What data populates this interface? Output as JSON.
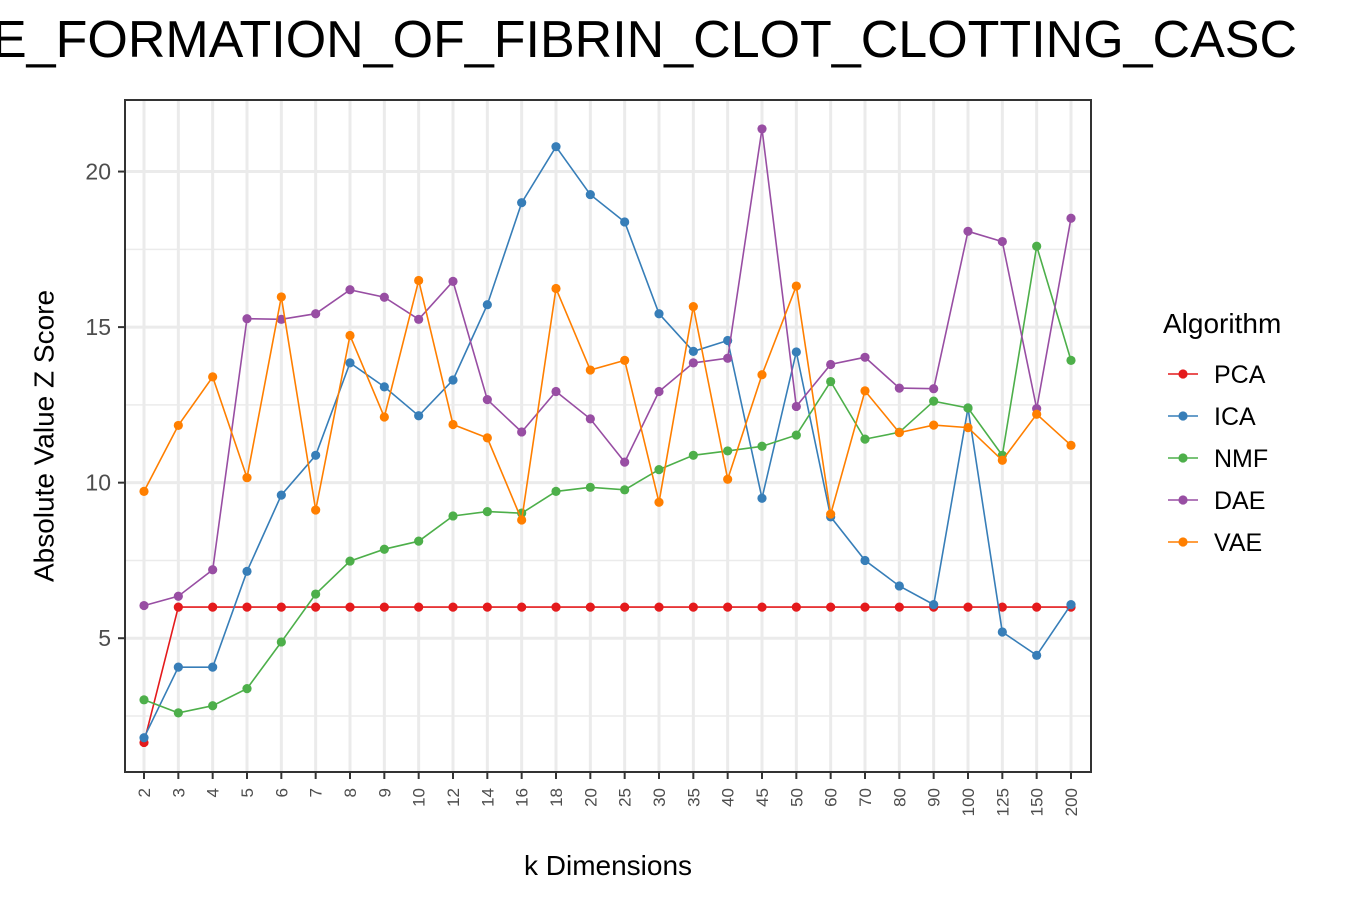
{
  "chart_data": {
    "type": "line",
    "title": "E_FORMATION_OF_FIBRIN_CLOT_CLOTTING_CASC",
    "xlabel": "k Dimensions",
    "ylabel": "Absolute Value Z Score",
    "categories": [
      "2",
      "3",
      "4",
      "5",
      "6",
      "7",
      "8",
      "9",
      "10",
      "12",
      "14",
      "16",
      "18",
      "20",
      "25",
      "30",
      "35",
      "40",
      "45",
      "50",
      "60",
      "70",
      "80",
      "90",
      "100",
      "125",
      "150",
      "200"
    ],
    "ylim": [
      0.7,
      22.3
    ],
    "yticks": [
      5,
      10,
      15,
      20
    ],
    "grid": true,
    "legend": {
      "title": "Algorithm",
      "position": "right"
    },
    "series": [
      {
        "name": "PCA",
        "color": "#e41a1c",
        "values": [
          1.65,
          6,
          6,
          6,
          6,
          6,
          6,
          6,
          6,
          6,
          6,
          6,
          6,
          6,
          6,
          6,
          6,
          6,
          6,
          6,
          6,
          6,
          6,
          6,
          6,
          6,
          6,
          6
        ]
      },
      {
        "name": "ICA",
        "color": "#377eb8",
        "values": [
          1.8,
          4.07,
          4.07,
          7.15,
          9.6,
          10.88,
          13.85,
          13.08,
          12.15,
          13.3,
          15.72,
          19.0,
          20.8,
          19.26,
          18.38,
          15.43,
          14.22,
          14.57,
          9.5,
          14.2,
          8.9,
          7.5,
          6.68,
          6.08,
          12.4,
          5.2,
          4.45,
          6.08
        ]
      },
      {
        "name": "NMF",
        "color": "#4daf4a",
        "values": [
          3.02,
          2.6,
          2.83,
          3.38,
          4.88,
          6.42,
          7.48,
          7.86,
          8.12,
          8.93,
          9.07,
          9.02,
          9.72,
          9.85,
          9.77,
          10.42,
          10.88,
          11.02,
          11.17,
          11.53,
          13.25,
          11.4,
          11.62,
          12.62,
          12.4,
          10.88,
          17.6,
          13.93
        ]
      },
      {
        "name": "DAE",
        "color": "#984ea3",
        "values": [
          6.05,
          6.35,
          7.2,
          15.27,
          15.25,
          15.43,
          16.2,
          15.96,
          15.25,
          16.47,
          12.67,
          11.63,
          12.93,
          12.05,
          10.66,
          12.93,
          13.85,
          14.0,
          21.37,
          12.45,
          13.8,
          14.03,
          13.04,
          13.02,
          18.08,
          17.75,
          12.38,
          18.5
        ]
      },
      {
        "name": "VAE",
        "color": "#ff7f00",
        "values": [
          9.72,
          11.84,
          13.4,
          10.16,
          15.97,
          9.12,
          14.73,
          12.11,
          16.5,
          11.87,
          11.44,
          8.8,
          16.24,
          13.62,
          13.93,
          9.37,
          15.66,
          10.11,
          13.47,
          16.32,
          8.99,
          12.95,
          11.61,
          11.85,
          11.77,
          10.72,
          12.2,
          11.2
        ]
      }
    ]
  }
}
